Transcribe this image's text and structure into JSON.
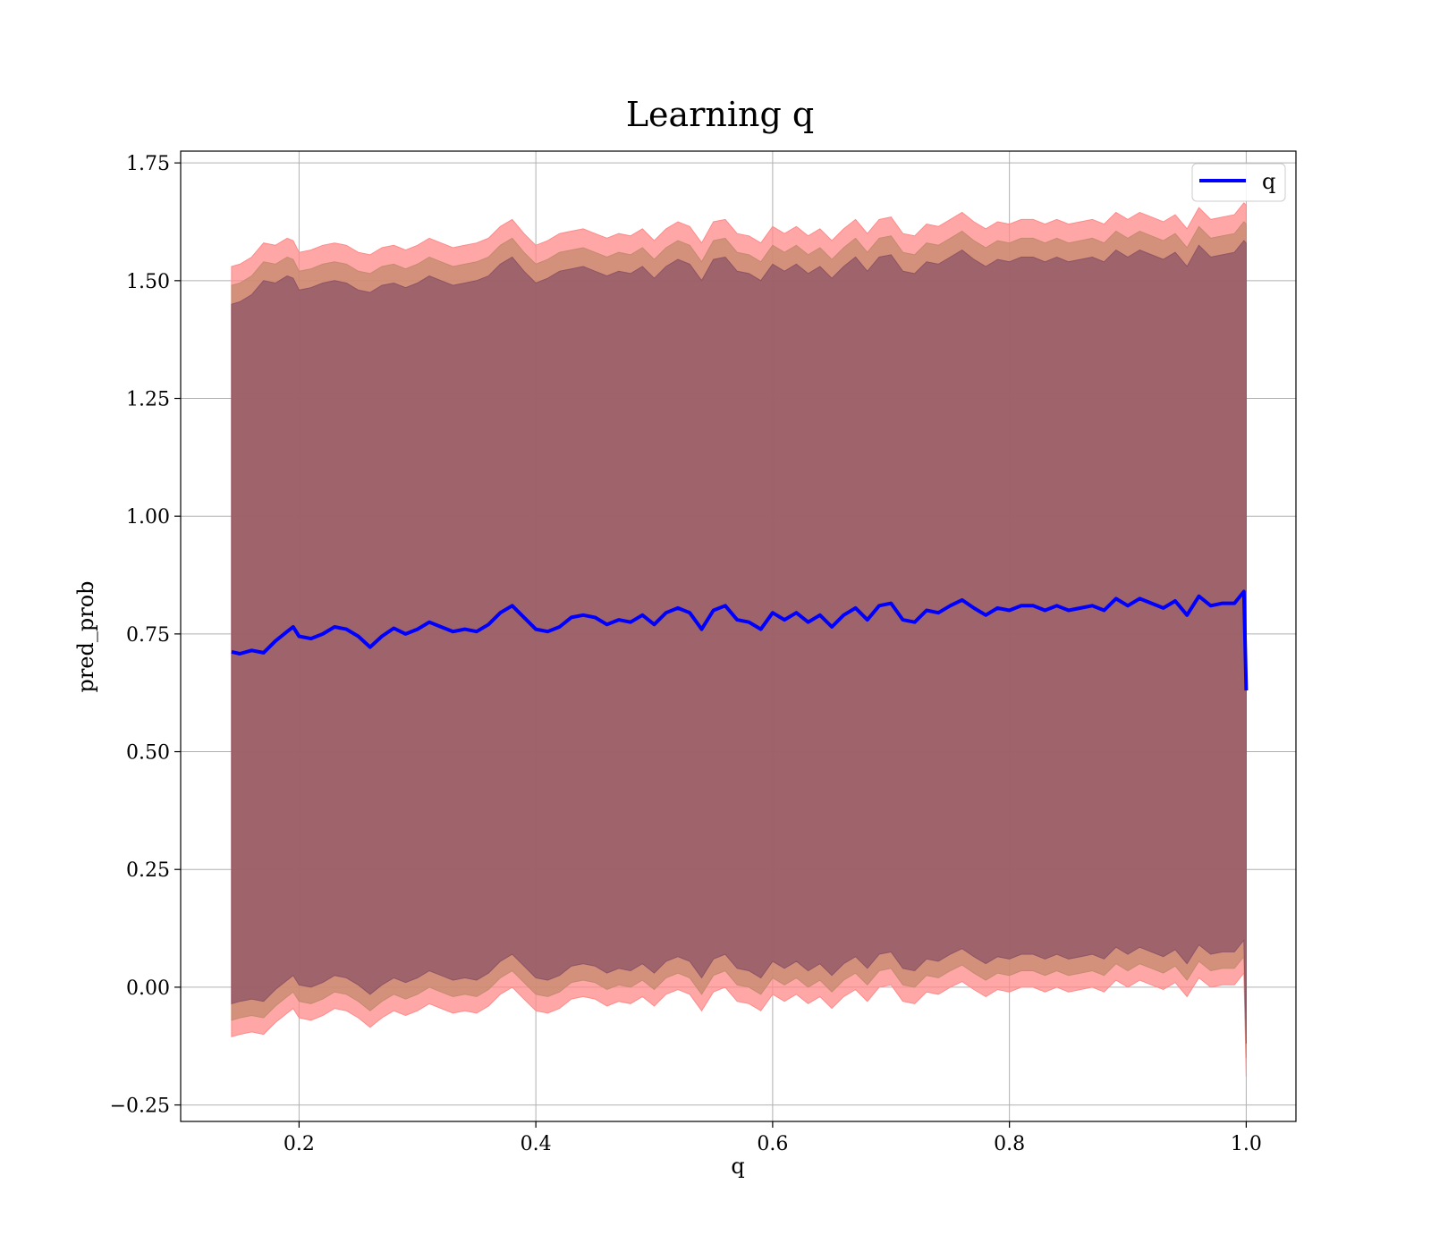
{
  "chart_data": {
    "type": "line",
    "title": "Learning q",
    "xlabel": "q",
    "ylabel": "pred_prob",
    "xlim": [
      0.1,
      1.042
    ],
    "ylim": [
      -0.285,
      1.775
    ],
    "xticks": [
      0.2,
      0.4,
      0.6,
      0.8,
      1.0
    ],
    "xtick_labels": [
      "0.2",
      "0.4",
      "0.6",
      "0.8",
      "1.0"
    ],
    "yticks": [
      -0.25,
      0.0,
      0.25,
      0.5,
      0.75,
      1.0,
      1.25,
      1.5,
      1.75
    ],
    "ytick_labels": [
      "−0.25",
      "0.00",
      "0.25",
      "0.50",
      "0.75",
      "1.00",
      "1.25",
      "1.50",
      "1.75"
    ],
    "grid": true,
    "legend": {
      "position": "top-right",
      "entries": [
        "q"
      ]
    },
    "series": [
      {
        "name": "q",
        "color": "#0000ff",
        "x": [
          0.143,
          0.15,
          0.16,
          0.17,
          0.18,
          0.19,
          0.195,
          0.2,
          0.21,
          0.22,
          0.23,
          0.24,
          0.25,
          0.26,
          0.27,
          0.28,
          0.29,
          0.3,
          0.31,
          0.32,
          0.33,
          0.34,
          0.35,
          0.36,
          0.37,
          0.38,
          0.39,
          0.4,
          0.41,
          0.42,
          0.43,
          0.44,
          0.45,
          0.46,
          0.47,
          0.48,
          0.49,
          0.5,
          0.51,
          0.52,
          0.53,
          0.54,
          0.55,
          0.56,
          0.57,
          0.58,
          0.59,
          0.6,
          0.61,
          0.62,
          0.63,
          0.64,
          0.65,
          0.66,
          0.67,
          0.68,
          0.69,
          0.7,
          0.71,
          0.72,
          0.73,
          0.74,
          0.75,
          0.76,
          0.77,
          0.78,
          0.79,
          0.8,
          0.81,
          0.82,
          0.83,
          0.84,
          0.85,
          0.86,
          0.87,
          0.88,
          0.89,
          0.9,
          0.91,
          0.92,
          0.93,
          0.94,
          0.95,
          0.96,
          0.97,
          0.98,
          0.99,
          0.998,
          1.0
        ],
        "values": [
          0.712,
          0.708,
          0.715,
          0.71,
          0.735,
          0.755,
          0.765,
          0.745,
          0.74,
          0.75,
          0.765,
          0.76,
          0.745,
          0.722,
          0.745,
          0.762,
          0.75,
          0.76,
          0.775,
          0.765,
          0.755,
          0.76,
          0.755,
          0.77,
          0.795,
          0.81,
          0.785,
          0.76,
          0.755,
          0.765,
          0.785,
          0.79,
          0.785,
          0.77,
          0.78,
          0.775,
          0.79,
          0.77,
          0.795,
          0.805,
          0.795,
          0.76,
          0.8,
          0.81,
          0.78,
          0.775,
          0.76,
          0.795,
          0.78,
          0.795,
          0.775,
          0.79,
          0.765,
          0.79,
          0.805,
          0.78,
          0.81,
          0.815,
          0.78,
          0.775,
          0.8,
          0.795,
          0.81,
          0.822,
          0.805,
          0.79,
          0.805,
          0.8,
          0.81,
          0.81,
          0.8,
          0.81,
          0.8,
          0.805,
          0.81,
          0.8,
          0.825,
          0.81,
          0.825,
          0.815,
          0.805,
          0.82,
          0.79,
          0.83,
          0.81,
          0.815,
          0.815,
          0.84,
          0.63
        ]
      }
    ],
    "bands": [
      {
        "color": "#ff8a8a",
        "upper": [
          1.53,
          1.535,
          1.55,
          1.58,
          1.575,
          1.59,
          1.585,
          1.56,
          1.565,
          1.575,
          1.58,
          1.575,
          1.56,
          1.555,
          1.57,
          1.575,
          1.565,
          1.575,
          1.59,
          1.58,
          1.57,
          1.575,
          1.58,
          1.59,
          1.615,
          1.63,
          1.6,
          1.575,
          1.585,
          1.6,
          1.605,
          1.61,
          1.6,
          1.59,
          1.6,
          1.595,
          1.61,
          1.585,
          1.61,
          1.625,
          1.615,
          1.58,
          1.625,
          1.63,
          1.6,
          1.595,
          1.58,
          1.615,
          1.6,
          1.615,
          1.595,
          1.61,
          1.585,
          1.61,
          1.63,
          1.6,
          1.63,
          1.635,
          1.6,
          1.595,
          1.62,
          1.615,
          1.63,
          1.645,
          1.625,
          1.61,
          1.625,
          1.62,
          1.63,
          1.63,
          1.62,
          1.63,
          1.62,
          1.625,
          1.63,
          1.62,
          1.645,
          1.63,
          1.645,
          1.635,
          1.625,
          1.64,
          1.61,
          1.655,
          1.63,
          1.635,
          1.64,
          1.665,
          1.66
        ],
        "lower": [
          -0.105,
          -0.1,
          -0.095,
          -0.1,
          -0.075,
          -0.055,
          -0.045,
          -0.065,
          -0.07,
          -0.06,
          -0.045,
          -0.05,
          -0.065,
          -0.085,
          -0.065,
          -0.05,
          -0.06,
          -0.05,
          -0.035,
          -0.045,
          -0.055,
          -0.05,
          -0.055,
          -0.04,
          -0.015,
          0.0,
          -0.025,
          -0.05,
          -0.055,
          -0.045,
          -0.025,
          -0.02,
          -0.025,
          -0.04,
          -0.03,
          -0.035,
          -0.02,
          -0.04,
          -0.015,
          -0.005,
          -0.015,
          -0.05,
          -0.01,
          0.0,
          -0.03,
          -0.035,
          -0.05,
          -0.015,
          -0.03,
          -0.015,
          -0.035,
          -0.02,
          -0.045,
          -0.02,
          -0.005,
          -0.03,
          0.0,
          0.005,
          -0.03,
          -0.035,
          -0.01,
          -0.015,
          0.0,
          0.012,
          -0.005,
          -0.02,
          -0.005,
          -0.01,
          0.0,
          0.0,
          -0.01,
          0.0,
          -0.01,
          -0.005,
          0.0,
          -0.01,
          0.015,
          0.0,
          0.015,
          0.005,
          -0.005,
          0.01,
          -0.02,
          0.02,
          0.0,
          0.005,
          0.005,
          0.03,
          -0.19
        ]
      },
      {
        "color": "#c48a6e",
        "upper": [
          1.49,
          1.495,
          1.51,
          1.54,
          1.535,
          1.55,
          1.545,
          1.52,
          1.525,
          1.535,
          1.54,
          1.535,
          1.52,
          1.515,
          1.53,
          1.535,
          1.525,
          1.535,
          1.55,
          1.54,
          1.53,
          1.535,
          1.54,
          1.55,
          1.575,
          1.59,
          1.56,
          1.535,
          1.545,
          1.56,
          1.565,
          1.57,
          1.56,
          1.55,
          1.56,
          1.555,
          1.57,
          1.545,
          1.57,
          1.585,
          1.575,
          1.54,
          1.585,
          1.59,
          1.56,
          1.555,
          1.54,
          1.575,
          1.56,
          1.575,
          1.555,
          1.57,
          1.545,
          1.57,
          1.59,
          1.56,
          1.59,
          1.595,
          1.56,
          1.555,
          1.58,
          1.575,
          1.59,
          1.605,
          1.585,
          1.57,
          1.585,
          1.58,
          1.59,
          1.59,
          1.58,
          1.59,
          1.58,
          1.585,
          1.59,
          1.58,
          1.605,
          1.59,
          1.605,
          1.595,
          1.585,
          1.6,
          1.57,
          1.615,
          1.59,
          1.595,
          1.6,
          1.625,
          1.62
        ],
        "lower": [
          -0.07,
          -0.065,
          -0.06,
          -0.065,
          -0.04,
          -0.02,
          -0.01,
          -0.03,
          -0.035,
          -0.025,
          -0.01,
          -0.015,
          -0.03,
          -0.05,
          -0.03,
          -0.015,
          -0.025,
          -0.015,
          0.0,
          -0.01,
          -0.02,
          -0.015,
          -0.02,
          -0.005,
          0.02,
          0.035,
          0.01,
          -0.015,
          -0.02,
          -0.01,
          0.01,
          0.015,
          0.01,
          -0.005,
          0.005,
          0.0,
          0.015,
          -0.005,
          0.02,
          0.03,
          0.02,
          -0.015,
          0.025,
          0.035,
          0.005,
          0.0,
          -0.015,
          0.02,
          0.005,
          0.02,
          0.0,
          0.015,
          -0.01,
          0.015,
          0.03,
          0.005,
          0.035,
          0.04,
          0.005,
          0.0,
          0.025,
          0.02,
          0.035,
          0.047,
          0.03,
          0.015,
          0.03,
          0.025,
          0.035,
          0.035,
          0.025,
          0.035,
          0.025,
          0.03,
          0.035,
          0.025,
          0.05,
          0.035,
          0.05,
          0.04,
          0.03,
          0.045,
          0.015,
          0.055,
          0.035,
          0.04,
          0.04,
          0.065,
          -0.15
        ]
      },
      {
        "color": "#8e5466",
        "upper": [
          1.45,
          1.455,
          1.47,
          1.5,
          1.495,
          1.51,
          1.505,
          1.48,
          1.485,
          1.495,
          1.5,
          1.495,
          1.48,
          1.475,
          1.49,
          1.495,
          1.485,
          1.495,
          1.51,
          1.5,
          1.49,
          1.495,
          1.5,
          1.51,
          1.535,
          1.55,
          1.52,
          1.495,
          1.505,
          1.52,
          1.525,
          1.53,
          1.52,
          1.51,
          1.52,
          1.515,
          1.53,
          1.505,
          1.53,
          1.545,
          1.535,
          1.5,
          1.545,
          1.55,
          1.52,
          1.515,
          1.5,
          1.535,
          1.52,
          1.535,
          1.515,
          1.53,
          1.505,
          1.53,
          1.55,
          1.52,
          1.55,
          1.555,
          1.52,
          1.515,
          1.54,
          1.535,
          1.55,
          1.565,
          1.545,
          1.53,
          1.545,
          1.54,
          1.55,
          1.55,
          1.54,
          1.55,
          1.54,
          1.545,
          1.55,
          1.54,
          1.565,
          1.55,
          1.565,
          1.555,
          1.545,
          1.56,
          1.53,
          1.575,
          1.55,
          1.555,
          1.56,
          1.585,
          1.58
        ],
        "lower": [
          -0.035,
          -0.03,
          -0.025,
          -0.03,
          -0.005,
          0.015,
          0.025,
          0.005,
          0.0,
          0.01,
          0.025,
          0.02,
          0.005,
          -0.015,
          0.005,
          0.02,
          0.01,
          0.02,
          0.035,
          0.025,
          0.015,
          0.02,
          0.015,
          0.03,
          0.055,
          0.07,
          0.045,
          0.02,
          0.015,
          0.025,
          0.045,
          0.05,
          0.045,
          0.03,
          0.04,
          0.035,
          0.05,
          0.03,
          0.055,
          0.065,
          0.055,
          0.02,
          0.06,
          0.07,
          0.04,
          0.035,
          0.02,
          0.055,
          0.04,
          0.055,
          0.035,
          0.05,
          0.025,
          0.05,
          0.065,
          0.04,
          0.07,
          0.075,
          0.04,
          0.035,
          0.06,
          0.055,
          0.07,
          0.082,
          0.065,
          0.05,
          0.065,
          0.06,
          0.07,
          0.07,
          0.06,
          0.07,
          0.06,
          0.065,
          0.07,
          0.06,
          0.085,
          0.07,
          0.085,
          0.075,
          0.065,
          0.08,
          0.05,
          0.09,
          0.07,
          0.075,
          0.075,
          0.1,
          -0.12
        ]
      }
    ]
  }
}
